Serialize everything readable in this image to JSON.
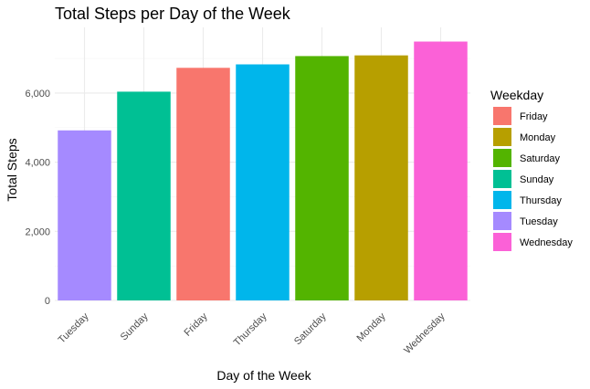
{
  "chart_data": {
    "type": "bar",
    "title": "Total Steps per Day of the Week",
    "xlabel": "Day of the Week",
    "ylabel": "Total Steps",
    "categories": [
      "Tuesday",
      "Sunday",
      "Friday",
      "Thursday",
      "Saturday",
      "Monday",
      "Wednesday"
    ],
    "values": [
      4920,
      6040,
      6730,
      6830,
      7070,
      7090,
      7490
    ],
    "ylim": [
      0,
      7900
    ],
    "yticks": [
      0,
      2000,
      4000,
      6000
    ],
    "ytick_labels": [
      "0",
      "2,000",
      "4,000",
      "6,000"
    ],
    "grid": true,
    "legend": {
      "title": "Weekday",
      "placement": "right",
      "entries": [
        {
          "label": "Friday",
          "color": "#F8766D"
        },
        {
          "label": "Monday",
          "color": "#B79F00"
        },
        {
          "label": "Saturday",
          "color": "#53B400"
        },
        {
          "label": "Sunday",
          "color": "#00C094"
        },
        {
          "label": "Thursday",
          "color": "#00B6EB"
        },
        {
          "label": "Tuesday",
          "color": "#A58AFF"
        },
        {
          "label": "Wednesday",
          "color": "#FB61D7"
        }
      ]
    }
  }
}
